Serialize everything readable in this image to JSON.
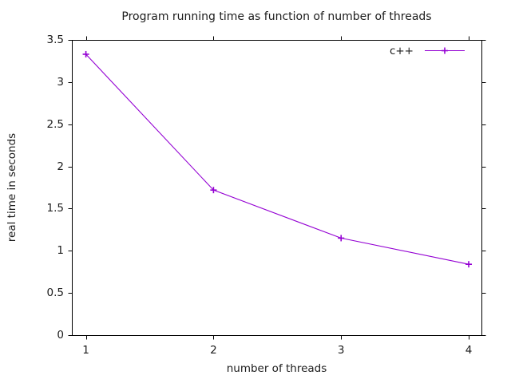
{
  "window": {
    "background": "#ffffff",
    "text_color": "#1c1c1c",
    "border_color": "#000000"
  },
  "chart_data": {
    "type": "line",
    "title": "Program running time as function of number of threads",
    "xlabel": "number of threads",
    "ylabel": "real time in seconds",
    "x": [
      1,
      2,
      3,
      4
    ],
    "series": [
      {
        "name": "c++",
        "values": [
          3.33,
          1.72,
          1.15,
          0.84
        ],
        "color": "#9400d3",
        "marker": "plus"
      }
    ],
    "xlim": [
      0.89,
      4.1
    ],
    "ylim": [
      0,
      3.5
    ],
    "xticks": [
      1,
      2,
      3,
      4
    ],
    "yticks": [
      0,
      0.5,
      1,
      1.5,
      2,
      2.5,
      3,
      3.5
    ],
    "grid": false,
    "legend_position": "top-right",
    "tick_style": "out-mirrored"
  }
}
